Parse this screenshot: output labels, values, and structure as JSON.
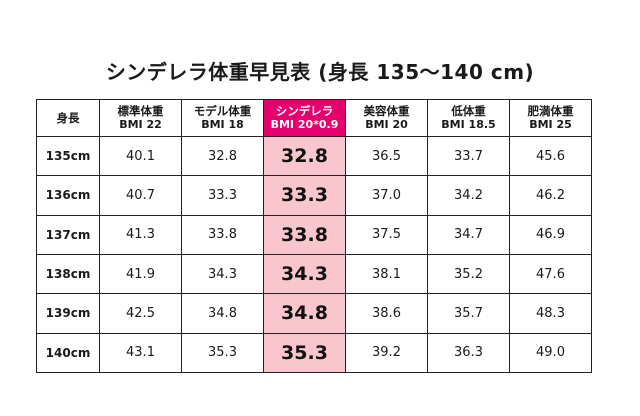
{
  "title": "シンデレラ体重早見表 (身長 135～140 cm)",
  "header": {
    "height_label": "身長",
    "columns": [
      {
        "name": "標準体重",
        "sub": "BMI 22"
      },
      {
        "name": "モデル体重",
        "sub": "BMI 18"
      },
      {
        "name": "シンデレラ",
        "sub": "BMI 20*0.9"
      },
      {
        "name": "美容体重",
        "sub": "BMI 20"
      },
      {
        "name": "低体重",
        "sub": "BMI 18.5"
      },
      {
        "name": "肥満体重",
        "sub": "BMI 25"
      }
    ]
  },
  "rows": [
    {
      "height": "135cm",
      "values": [
        "40.1",
        "32.8",
        "32.8",
        "36.5",
        "33.7",
        "45.6"
      ]
    },
    {
      "height": "136cm",
      "values": [
        "40.7",
        "33.3",
        "33.3",
        "37.0",
        "34.2",
        "46.2"
      ]
    },
    {
      "height": "137cm",
      "values": [
        "41.3",
        "33.8",
        "33.8",
        "37.5",
        "34.7",
        "46.9"
      ]
    },
    {
      "height": "138cm",
      "values": [
        "41.9",
        "34.3",
        "34.3",
        "38.1",
        "35.2",
        "47.6"
      ]
    },
    {
      "height": "139cm",
      "values": [
        "42.5",
        "34.8",
        "34.8",
        "38.6",
        "35.7",
        "48.3"
      ]
    },
    {
      "height": "140cm",
      "values": [
        "43.1",
        "35.3",
        "35.3",
        "39.2",
        "36.3",
        "49.0"
      ]
    }
  ],
  "colors": {
    "highlight_header": "#e5006e",
    "highlight_cell": "#f8c6cc"
  }
}
